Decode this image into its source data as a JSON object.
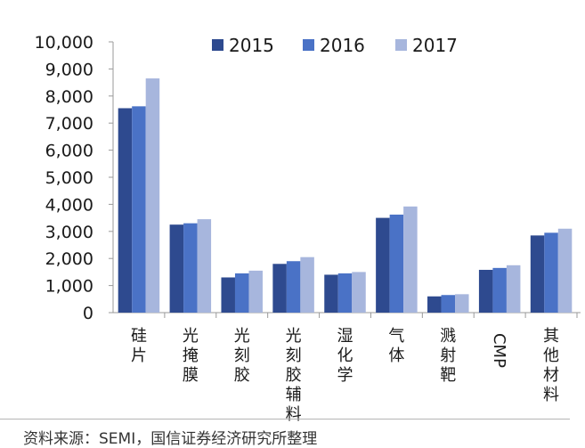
{
  "chart_data": {
    "type": "bar",
    "categories": [
      "硅片",
      "光掩膜",
      "光刻胶",
      "光刻胶辅料",
      "湿化学",
      "气体",
      "溅射靶",
      "CMP",
      "其他材料"
    ],
    "vertical_categories": [
      true,
      true,
      true,
      true,
      true,
      true,
      true,
      false,
      true
    ],
    "series": [
      {
        "name": "2015",
        "color": "#2e4a8f",
        "values": [
          7550,
          3250,
          1300,
          1800,
          1400,
          3500,
          600,
          1580,
          2850
        ]
      },
      {
        "name": "2016",
        "color": "#4a72c6",
        "values": [
          7620,
          3300,
          1450,
          1900,
          1450,
          3620,
          650,
          1650,
          2950
        ]
      },
      {
        "name": "2017",
        "color": "#a7b6dd",
        "values": [
          8650,
          3450,
          1550,
          2050,
          1500,
          3920,
          680,
          1750,
          3100
        ]
      }
    ],
    "ylim": [
      0,
      10000
    ],
    "yticks": [
      "0",
      "1,000",
      "2,000",
      "3,000",
      "4,000",
      "5,000",
      "6,000",
      "7,000",
      "8,000",
      "9,000",
      "10,000"
    ],
    "legend_position": "top"
  },
  "source": "资料来源：SEMI，国信证券经济研究所整理"
}
